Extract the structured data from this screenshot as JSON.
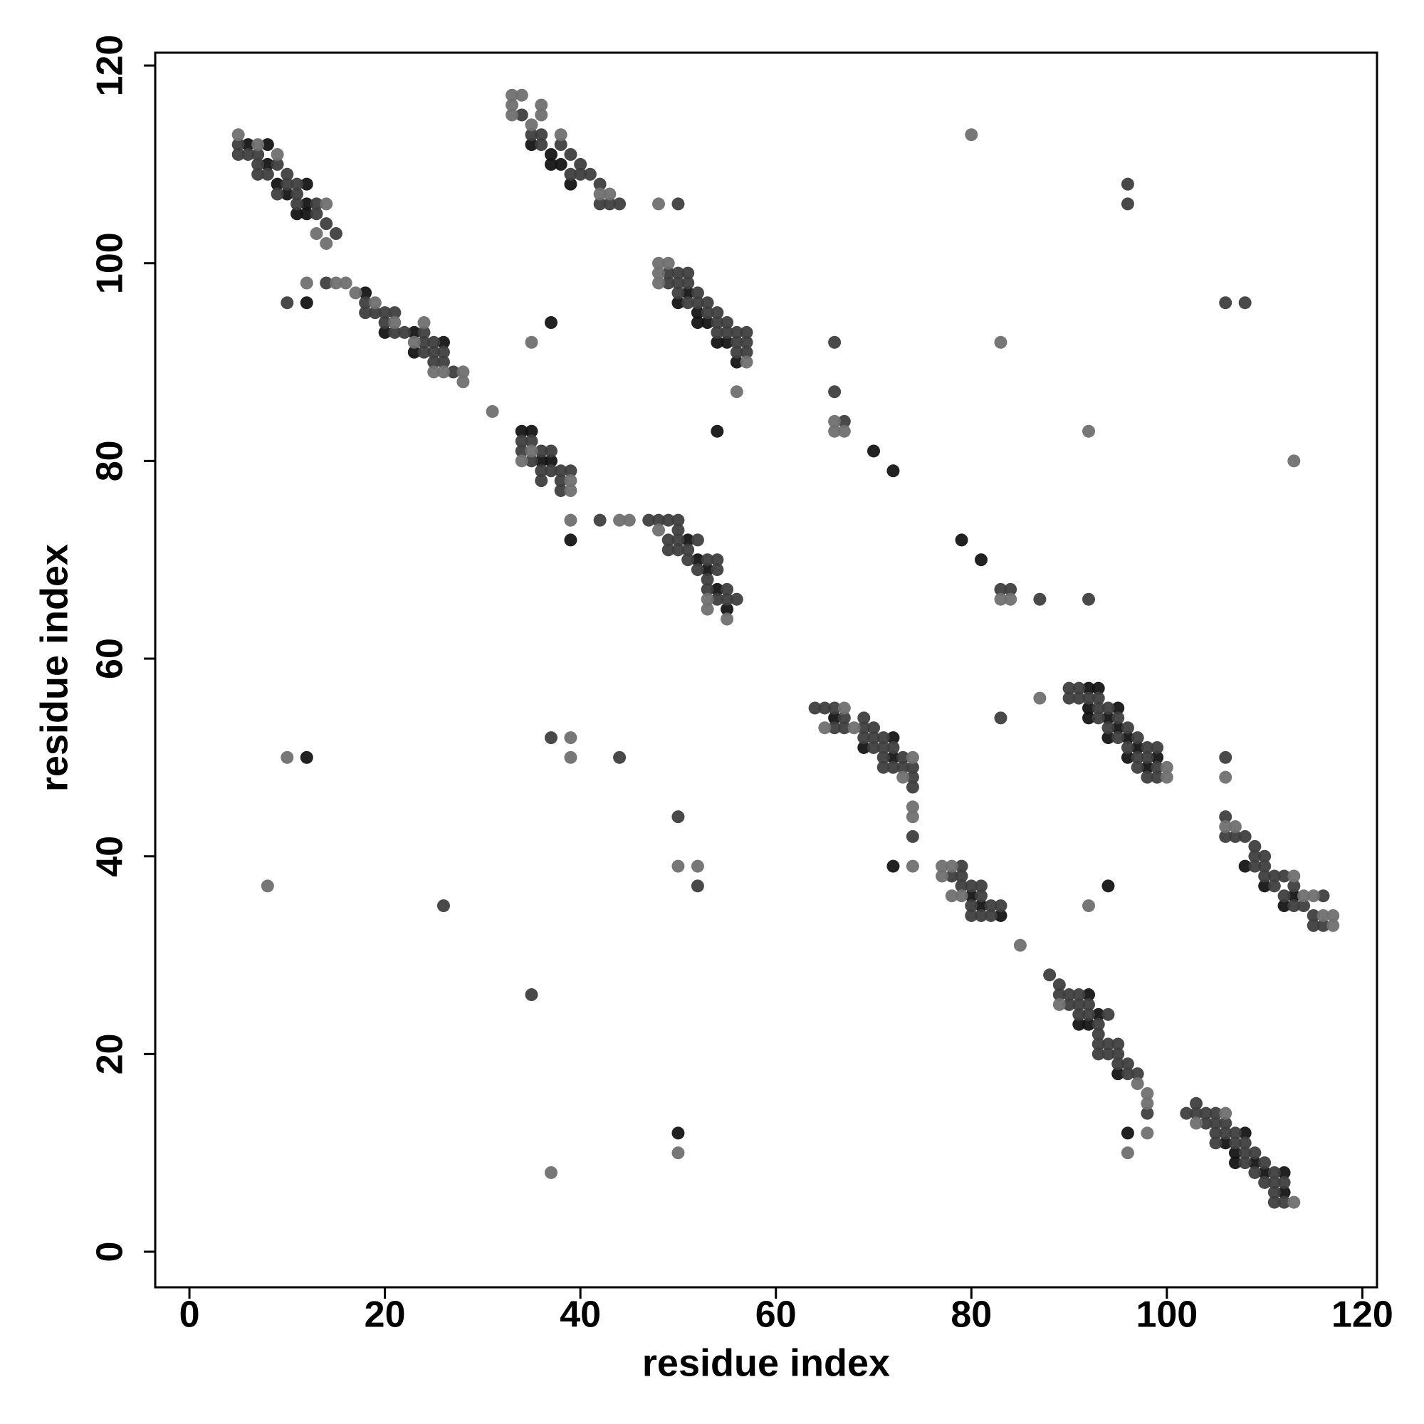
{
  "chart_data": {
    "type": "scatter",
    "x_label": "residue index",
    "y_label": "residue index",
    "xlim": [
      -3.5,
      121.5
    ],
    "ylim": [
      -3.6,
      121.3
    ],
    "xticks": [
      0,
      20,
      40,
      60,
      80,
      100,
      120
    ],
    "yticks": [
      0,
      20,
      40,
      60,
      80,
      100,
      120
    ],
    "grid": false,
    "series": [
      {
        "color": "#151515",
        "x": [
          6,
          8,
          8,
          9,
          10,
          11,
          12,
          12,
          12,
          12,
          35,
          37,
          37,
          38,
          39,
          37,
          18,
          20,
          23,
          23,
          26,
          50,
          51,
          52,
          52,
          53,
          54,
          55,
          56,
          34,
          35,
          36,
          37,
          39,
          51,
          52,
          53,
          54,
          55,
          54,
          70,
          72,
          79,
          81,
          66,
          69,
          72,
          72,
          72,
          92,
          92,
          92,
          93,
          94,
          94,
          95,
          95,
          96,
          96,
          97,
          98,
          99,
          108,
          110,
          112,
          113,
          80,
          81,
          83,
          94,
          92,
          91,
          92,
          93,
          95,
          96,
          106,
          107,
          107,
          108,
          109,
          110,
          112,
          112,
          12,
          50
        ],
        "y": [
          112,
          112,
          110,
          108,
          107,
          105,
          108,
          106,
          105,
          96,
          112,
          111,
          110,
          110,
          108,
          94,
          97,
          93,
          93,
          91,
          92,
          96,
          97,
          95,
          94,
          94,
          92,
          92,
          90,
          83,
          83,
          80,
          80,
          72,
          72,
          70,
          69,
          67,
          65,
          83,
          81,
          79,
          72,
          70,
          54,
          51,
          52,
          50,
          39,
          57,
          55,
          54,
          57,
          54,
          52,
          55,
          53,
          52,
          50,
          51,
          49,
          50,
          39,
          37,
          35,
          36,
          36,
          35,
          34,
          37,
          26,
          23,
          23,
          24,
          18,
          12,
          11,
          10,
          9,
          12,
          9,
          8,
          8,
          6,
          50,
          12
        ]
      },
      {
        "color": "#3f3f3f",
        "x": [
          5,
          5,
          6,
          7,
          7,
          7,
          8,
          9,
          9,
          10,
          10,
          11,
          11,
          11,
          13,
          13,
          14,
          15,
          34,
          35,
          36,
          36,
          38,
          39,
          39,
          40,
          40,
          41,
          42,
          42,
          43,
          44,
          50,
          10,
          14,
          18,
          18,
          19,
          20,
          20,
          21,
          21,
          22,
          24,
          24,
          24,
          25,
          25,
          25,
          26,
          26,
          27,
          49,
          49,
          50,
          50,
          50,
          51,
          51,
          51,
          52,
          52,
          53,
          53,
          54,
          54,
          54,
          55,
          55,
          56,
          56,
          56,
          57,
          57,
          57,
          34,
          34,
          35,
          35,
          36,
          36,
          36,
          37,
          37,
          38,
          38,
          38,
          39,
          42,
          47,
          48,
          49,
          49,
          49,
          50,
          50,
          50,
          50,
          51,
          51,
          52,
          52,
          53,
          53,
          53,
          54,
          54,
          54,
          55,
          55,
          56,
          66,
          66,
          67,
          83,
          84,
          87,
          92,
          96,
          96,
          106,
          108,
          64,
          65,
          66,
          66,
          67,
          67,
          69,
          69,
          69,
          70,
          70,
          70,
          71,
          71,
          71,
          71,
          72,
          72,
          73,
          73,
          74,
          74,
          74,
          74,
          83,
          90,
          90,
          91,
          91,
          92,
          93,
          93,
          93,
          94,
          94,
          95,
          95,
          96,
          96,
          97,
          97,
          97,
          98,
          98,
          98,
          99,
          99,
          99,
          106,
          106,
          106,
          107,
          108,
          109,
          109,
          109,
          110,
          110,
          110,
          111,
          111,
          112,
          112,
          113,
          113,
          114,
          115,
          115,
          116,
          116,
          78,
          79,
          79,
          79,
          80,
          80,
          80,
          81,
          81,
          81,
          82,
          82,
          83,
          88,
          89,
          89,
          90,
          90,
          91,
          91,
          91,
          92,
          92,
          93,
          93,
          93,
          93,
          94,
          94,
          94,
          95,
          95,
          95,
          96,
          96,
          97,
          98,
          102,
          103,
          103,
          104,
          104,
          105,
          105,
          105,
          105,
          106,
          106,
          107,
          107,
          108,
          108,
          108,
          109,
          109,
          110,
          110,
          111,
          111,
          111,
          111,
          112,
          112,
          37,
          44,
          26,
          50,
          52,
          35
        ],
        "y": [
          112,
          111,
          111,
          111,
          110,
          109,
          109,
          110,
          107,
          109,
          108,
          108,
          107,
          106,
          106,
          105,
          104,
          103,
          115,
          113,
          113,
          112,
          112,
          111,
          109,
          110,
          109,
          109,
          108,
          106,
          106,
          106,
          106,
          96,
          98,
          96,
          95,
          95,
          95,
          94,
          95,
          93,
          93,
          93,
          92,
          91,
          92,
          91,
          90,
          91,
          90,
          89,
          99,
          98,
          99,
          98,
          97,
          99,
          98,
          96,
          97,
          96,
          96,
          95,
          95,
          94,
          93,
          94,
          93,
          93,
          92,
          91,
          93,
          92,
          91,
          82,
          81,
          82,
          80,
          81,
          79,
          78,
          81,
          79,
          79,
          78,
          77,
          79,
          74,
          74,
          74,
          74,
          72,
          71,
          74,
          73,
          72,
          71,
          71,
          70,
          72,
          69,
          70,
          68,
          67,
          70,
          69,
          66,
          67,
          66,
          66,
          92,
          87,
          84,
          67,
          67,
          66,
          66,
          108,
          106,
          96,
          96,
          55,
          55,
          55,
          53,
          54,
          53,
          54,
          53,
          52,
          53,
          52,
          51,
          52,
          51,
          50,
          49,
          51,
          49,
          50,
          49,
          49,
          48,
          47,
          42,
          54,
          57,
          56,
          57,
          56,
          56,
          56,
          55,
          54,
          55,
          53,
          54,
          52,
          53,
          51,
          52,
          50,
          49,
          51,
          50,
          48,
          51,
          49,
          48,
          50,
          44,
          42,
          42,
          42,
          41,
          40,
          39,
          40,
          39,
          38,
          38,
          37,
          38,
          36,
          37,
          35,
          35,
          34,
          33,
          36,
          33,
          38,
          39,
          38,
          37,
          37,
          35,
          34,
          37,
          36,
          34,
          35,
          34,
          35,
          28,
          27,
          26,
          26,
          25,
          26,
          25,
          24,
          25,
          24,
          23,
          22,
          21,
          20,
          24,
          21,
          20,
          21,
          20,
          19,
          19,
          18,
          18,
          14,
          14,
          15,
          14,
          14,
          13,
          14,
          13,
          12,
          11,
          13,
          12,
          12,
          11,
          11,
          10,
          9,
          10,
          8,
          9,
          7,
          8,
          7,
          6,
          5,
          7,
          5,
          52,
          50,
          35,
          44,
          37,
          26
        ]
      },
      {
        "color": "#707070",
        "x": [
          5,
          7,
          9,
          13,
          14,
          14,
          12,
          15,
          16,
          17,
          19,
          21,
          23,
          24,
          25,
          26,
          28,
          28,
          31,
          33,
          33,
          33,
          34,
          35,
          36,
          36,
          38,
          42,
          43,
          48,
          48,
          48,
          48,
          49,
          57,
          56,
          35,
          34,
          35,
          39,
          39,
          39,
          44,
          45,
          48,
          53,
          53,
          55,
          66,
          66,
          67,
          83,
          84,
          80,
          83,
          92,
          113,
          65,
          67,
          68,
          73,
          74,
          74,
          74,
          74,
          87,
          100,
          100,
          106,
          106,
          107,
          113,
          114,
          115,
          116,
          117,
          117,
          77,
          77,
          78,
          78,
          79,
          85,
          92,
          89,
          97,
          98,
          98,
          98,
          96,
          103,
          106,
          113,
          10,
          39,
          39,
          8,
          50,
          52,
          50,
          37
        ],
        "y": [
          113,
          112,
          111,
          103,
          106,
          102,
          98,
          98,
          98,
          97,
          96,
          94,
          92,
          94,
          89,
          89,
          89,
          88,
          85,
          117,
          116,
          115,
          117,
          114,
          116,
          115,
          113,
          107,
          107,
          106,
          100,
          99,
          98,
          100,
          90,
          87,
          92,
          80,
          81,
          78,
          77,
          74,
          74,
          74,
          73,
          66,
          65,
          64,
          84,
          83,
          83,
          66,
          66,
          113,
          92,
          83,
          80,
          53,
          55,
          53,
          48,
          50,
          45,
          44,
          39,
          56,
          49,
          48,
          48,
          43,
          43,
          38,
          36,
          36,
          34,
          34,
          33,
          39,
          38,
          39,
          36,
          36,
          31,
          35,
          25,
          17,
          16,
          15,
          12,
          10,
          13,
          14,
          5,
          50,
          52,
          50,
          37,
          39,
          39,
          10,
          8
        ]
      }
    ]
  }
}
